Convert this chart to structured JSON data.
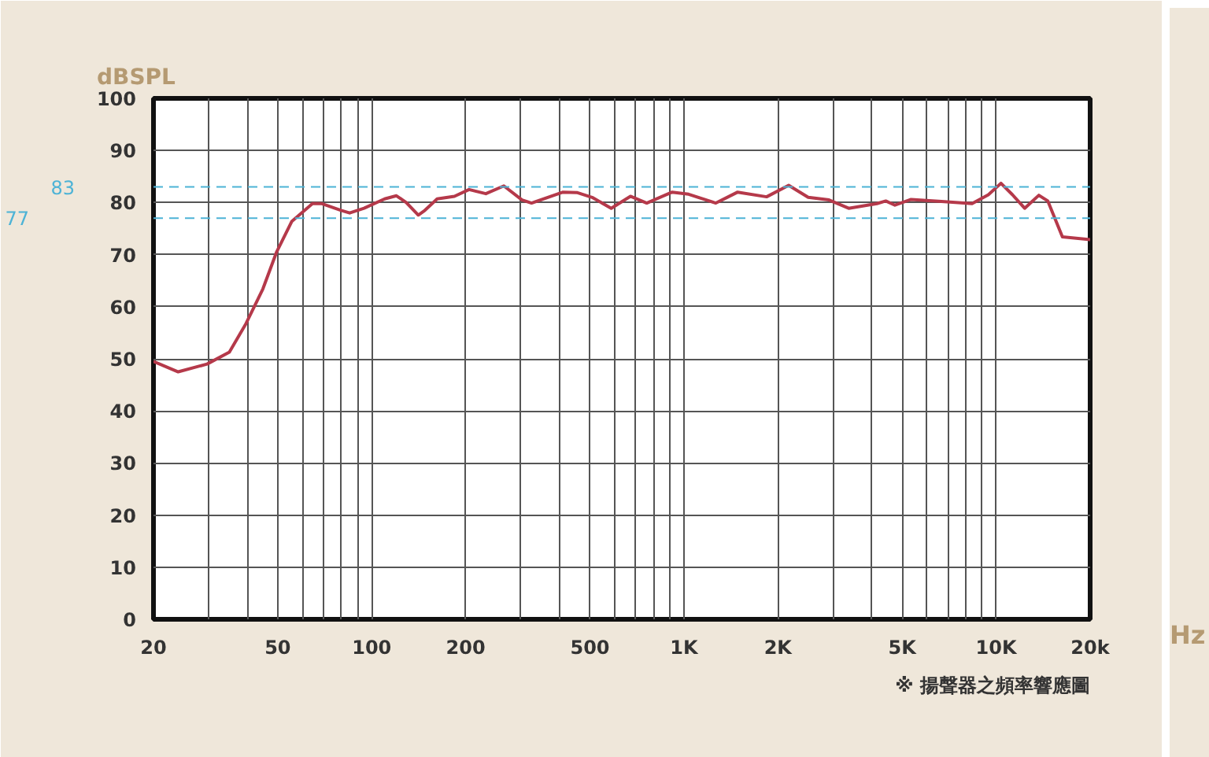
{
  "chart_data": {
    "type": "line",
    "ylabel": "dBSPL",
    "xlabel": "Hz",
    "log": "x",
    "grid": true,
    "line_style": "solid",
    "marker": "none",
    "x": [
      20,
      24,
      29.7,
      35,
      39.6,
      44.8,
      49.5,
      55.5,
      64.6,
      69,
      79.8,
      85,
      94.5,
      110,
      120,
      129,
      141,
      148,
      162,
      184,
      205,
      232,
      265,
      303,
      325,
      410,
      456,
      508,
      585,
      674,
      760,
      917,
      1035,
      1265,
      1486,
      1840,
      2165,
      2500,
      2915,
      3370,
      4150,
      4430,
      4740,
      5340,
      6680,
      8370,
      9440,
      10360,
      11280,
      12340,
      13700,
      14640,
      16300,
      20000
    ],
    "series": [
      {
        "color": "#b5394a",
        "values": [
          49.5,
          47.5,
          49,
          51.3,
          56.8,
          63.4,
          70.4,
          76.4,
          79.8,
          79.8,
          78.5,
          78,
          78.9,
          80.7,
          81.3,
          80,
          77.6,
          78.5,
          80.7,
          81.2,
          82.5,
          81.7,
          83.2,
          80.5,
          79.9,
          82,
          81.9,
          81,
          78.9,
          81.2,
          79.9,
          82,
          81.6,
          79.9,
          82,
          81.1,
          83.3,
          81,
          80.5,
          78.9,
          79.8,
          80.3,
          79.5,
          80.6,
          80.2,
          79.8,
          81.5,
          83.7,
          81.5,
          78.9,
          81.4,
          80.3,
          73.4,
          72.9
        ]
      }
    ],
    "xlim": [
      20,
      20000
    ],
    "ylim": [
      0,
      100
    ],
    "xticks": [
      20,
      {
        "value": 30,
        "label": null
      },
      {
        "value": 40,
        "label": null
      },
      50,
      {
        "value": 60,
        "label": null
      },
      {
        "value": 70,
        "label": null
      },
      {
        "value": 80,
        "label": null
      },
      {
        "value": 90,
        "label": null
      },
      100,
      200,
      {
        "value": 300,
        "label": null
      },
      {
        "value": 400,
        "label": null
      },
      500,
      {
        "value": 600,
        "label": null
      },
      {
        "value": 700,
        "label": null
      },
      {
        "value": 800,
        "label": null
      },
      {
        "value": 900,
        "label": null
      },
      {
        "value": 1000,
        "label": "1K"
      },
      {
        "value": 2000,
        "label": "2K"
      },
      {
        "value": 3000,
        "label": null
      },
      {
        "value": 4000,
        "label": null
      },
      {
        "value": 5000,
        "label": "5K"
      },
      {
        "value": 6000,
        "label": null
      },
      {
        "value": 7000,
        "label": null
      },
      {
        "value": 8000,
        "label": null
      },
      {
        "value": 9000,
        "label": null
      },
      {
        "value": 10000,
        "label": "10K"
      },
      {
        "value": 20000,
        "label": "20k"
      }
    ],
    "yticks": [
      0,
      10,
      20,
      30,
      40,
      50,
      60,
      70,
      80,
      90,
      100
    ],
    "ref_lines": [
      {
        "axis": "y",
        "value": 83,
        "label": "83",
        "color": "#4db3d6",
        "line_style": "dashed"
      },
      {
        "axis": "y",
        "value": 77,
        "label": "77",
        "color": "#4db3d6",
        "line_style": "dashed"
      }
    ],
    "annotations": [
      "※ 揚聲器之頻率響應圖"
    ]
  }
}
